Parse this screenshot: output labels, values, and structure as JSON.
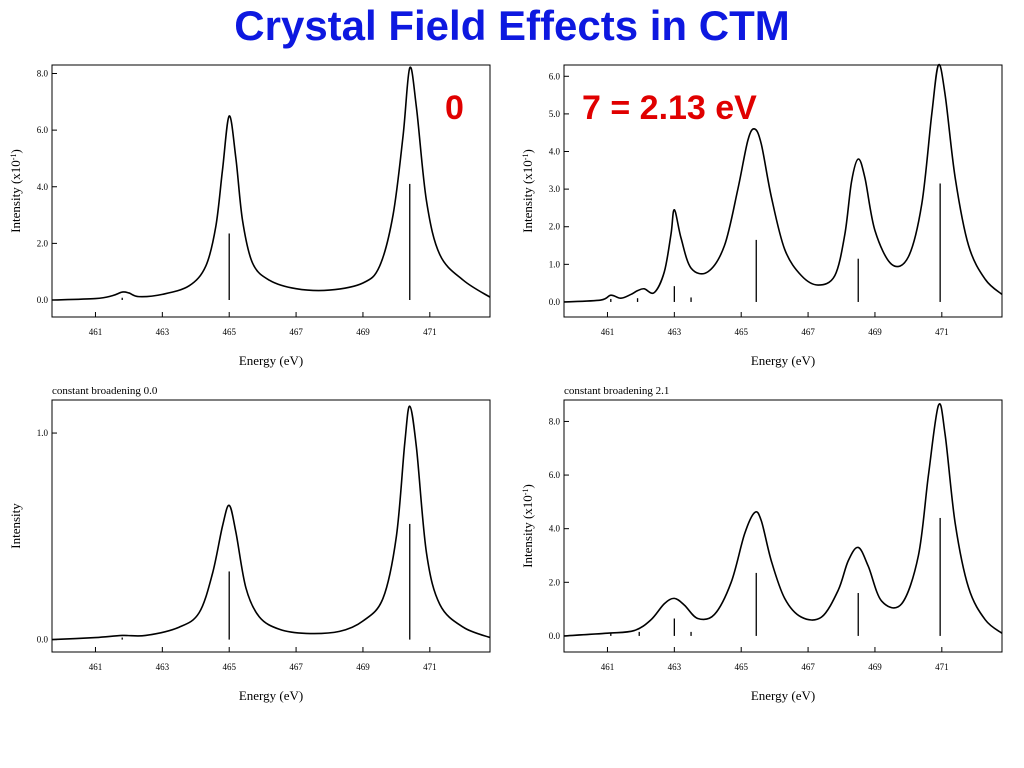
{
  "slide": {
    "title": "Crystal Field Effects in CTM",
    "left_value": "0",
    "right_value": "7 = 2.13 eV"
  },
  "chart_data": [
    {
      "type": "line",
      "title": "",
      "xlabel": "Energy (eV)",
      "ylabel_html": "Intensity (x10<tspan baseline-shift='super' font-size='8'>-1</tspan>)",
      "ylabel": "Intensity (x10-1)",
      "xlim": [
        459.7,
        472.8
      ],
      "ylim": [
        -0.6,
        8.3
      ],
      "xticks": [
        461,
        463,
        465,
        467,
        469,
        471
      ],
      "xtick_labels": [
        "461",
        "463",
        "465",
        "467",
        "469",
        "471"
      ],
      "yticks": [
        0,
        2,
        4,
        6,
        8
      ],
      "ytick_labels": [
        "0.0",
        "2.0",
        "4.0",
        "6.0",
        "8.0"
      ],
      "series": [
        {
          "x": [
            459.7,
            461.0,
            461.5,
            461.8,
            462.0,
            462.3,
            463.0,
            463.8,
            464.3,
            464.6,
            464.8,
            465.0,
            465.2,
            465.4,
            465.7,
            466.2,
            467.0,
            468.0,
            469.0,
            469.5,
            469.9,
            470.2,
            470.4,
            470.6,
            470.9,
            471.3,
            472.0,
            472.8
          ],
          "y": [
            0.0,
            0.05,
            0.15,
            0.28,
            0.25,
            0.12,
            0.2,
            0.5,
            1.2,
            2.6,
            4.6,
            6.5,
            5.0,
            2.8,
            1.3,
            0.7,
            0.4,
            0.35,
            0.6,
            1.2,
            3.0,
            5.8,
            8.2,
            6.8,
            3.5,
            1.6,
            0.7,
            0.1
          ]
        }
      ],
      "sticks": [
        {
          "x": 461.8,
          "h": 0.08
        },
        {
          "x": 465.0,
          "h": 2.35
        },
        {
          "x": 470.4,
          "h": 4.1
        }
      ]
    },
    {
      "type": "line",
      "title": "",
      "xlabel": "Energy (eV)",
      "ylabel_html": "Intensity (x10<tspan baseline-shift='super' font-size='8'>-1</tspan>)",
      "ylabel": "Intensity (x10-1)",
      "xlim": [
        459.7,
        472.8
      ],
      "ylim": [
        -0.4,
        6.3
      ],
      "xticks": [
        461,
        463,
        465,
        467,
        469,
        471
      ],
      "xtick_labels": [
        "461",
        "463",
        "465",
        "467",
        "469",
        "471"
      ],
      "yticks": [
        0,
        1,
        2,
        3,
        4,
        5,
        6
      ],
      "ytick_labels": [
        "0.0",
        "1.0",
        "2.0",
        "3.0",
        "4.0",
        "5.0",
        "6.0"
      ],
      "series": [
        {
          "x": [
            459.7,
            460.8,
            461.1,
            461.4,
            461.7,
            461.9,
            462.1,
            462.4,
            462.7,
            462.9,
            463.0,
            463.2,
            463.5,
            464.0,
            464.5,
            464.9,
            465.2,
            465.4,
            465.6,
            465.9,
            466.3,
            466.8,
            467.3,
            467.8,
            468.1,
            468.3,
            468.5,
            468.7,
            469.0,
            469.5,
            470.0,
            470.4,
            470.7,
            470.9,
            471.1,
            471.4,
            471.8,
            472.3,
            472.8
          ],
          "y": [
            0.0,
            0.05,
            0.18,
            0.1,
            0.2,
            0.3,
            0.35,
            0.25,
            0.8,
            1.8,
            2.45,
            1.7,
            0.9,
            0.8,
            1.5,
            3.0,
            4.3,
            4.6,
            4.2,
            2.8,
            1.4,
            0.7,
            0.45,
            0.7,
            1.8,
            3.2,
            3.8,
            3.3,
            1.9,
            1.0,
            1.2,
            2.6,
            5.0,
            6.3,
            5.5,
            3.3,
            1.5,
            0.6,
            0.2
          ]
        }
      ],
      "sticks": [
        {
          "x": 461.1,
          "h": 0.08
        },
        {
          "x": 461.9,
          "h": 0.1
        },
        {
          "x": 463.0,
          "h": 0.42
        },
        {
          "x": 463.5,
          "h": 0.12
        },
        {
          "x": 465.45,
          "h": 1.65
        },
        {
          "x": 468.5,
          "h": 1.15
        },
        {
          "x": 470.95,
          "h": 3.15
        }
      ]
    },
    {
      "type": "line",
      "title": "constant broadening 0.0",
      "xlabel": "Energy (eV)",
      "ylabel_html": "Intensity",
      "ylabel": "Intensity",
      "xlim": [
        459.7,
        472.8
      ],
      "ylim": [
        -0.06,
        1.16
      ],
      "xticks": [
        461,
        463,
        465,
        467,
        469,
        471
      ],
      "xtick_labels": [
        "461",
        "463",
        "465",
        "467",
        "469",
        "471"
      ],
      "yticks": [
        0,
        1
      ],
      "ytick_labels": [
        "0.0",
        "1.0"
      ],
      "series": [
        {
          "x": [
            459.7,
            461.0,
            461.8,
            462.5,
            463.5,
            464.1,
            464.5,
            464.8,
            465.0,
            465.2,
            465.5,
            465.9,
            466.5,
            467.3,
            468.3,
            469.0,
            469.6,
            470.0,
            470.25,
            470.4,
            470.6,
            470.9,
            471.3,
            472.0,
            472.8
          ],
          "y": [
            0.0,
            0.01,
            0.02,
            0.02,
            0.06,
            0.13,
            0.32,
            0.55,
            0.65,
            0.52,
            0.25,
            0.11,
            0.05,
            0.03,
            0.04,
            0.09,
            0.2,
            0.5,
            0.95,
            1.13,
            0.93,
            0.42,
            0.17,
            0.06,
            0.01
          ]
        }
      ],
      "sticks": [
        {
          "x": 461.8,
          "h": 0.01
        },
        {
          "x": 465.0,
          "h": 0.33
        },
        {
          "x": 470.4,
          "h": 0.56
        }
      ]
    },
    {
      "type": "line",
      "title": "constant broadening 2.1",
      "xlabel": "Energy (eV)",
      "ylabel_html": "Intensity (x10<tspan baseline-shift='super' font-size='8'>-1</tspan>)",
      "ylabel": "Intensity (x10-1)",
      "xlim": [
        459.7,
        472.8
      ],
      "ylim": [
        -0.6,
        8.8
      ],
      "xticks": [
        461,
        463,
        465,
        467,
        469,
        471
      ],
      "xtick_labels": [
        "461",
        "463",
        "465",
        "467",
        "469",
        "471"
      ],
      "yticks": [
        0,
        2,
        4,
        6,
        8
      ],
      "ytick_labels": [
        "0.0",
        "2.0",
        "4.0",
        "6.0",
        "8.0"
      ],
      "series": [
        {
          "x": [
            459.7,
            461.0,
            461.8,
            462.3,
            462.7,
            463.0,
            463.3,
            463.7,
            464.2,
            464.7,
            465.1,
            465.4,
            465.6,
            465.9,
            466.3,
            466.8,
            467.4,
            467.9,
            468.2,
            468.5,
            468.8,
            469.2,
            469.8,
            470.3,
            470.6,
            470.9,
            471.1,
            471.4,
            471.8,
            472.3,
            472.8
          ],
          "y": [
            0.0,
            0.1,
            0.2,
            0.6,
            1.2,
            1.4,
            1.15,
            0.65,
            0.8,
            2.0,
            3.8,
            4.6,
            4.3,
            2.8,
            1.4,
            0.7,
            0.7,
            1.7,
            2.8,
            3.3,
            2.6,
            1.3,
            1.2,
            3.0,
            6.0,
            8.6,
            7.5,
            4.2,
            1.8,
            0.6,
            0.1
          ]
        }
      ],
      "sticks": [
        {
          "x": 461.1,
          "h": 0.1
        },
        {
          "x": 461.95,
          "h": 0.15
        },
        {
          "x": 463.0,
          "h": 0.65
        },
        {
          "x": 463.5,
          "h": 0.15
        },
        {
          "x": 465.45,
          "h": 2.35
        },
        {
          "x": 468.5,
          "h": 1.6
        },
        {
          "x": 470.95,
          "h": 4.4
        }
      ]
    }
  ]
}
